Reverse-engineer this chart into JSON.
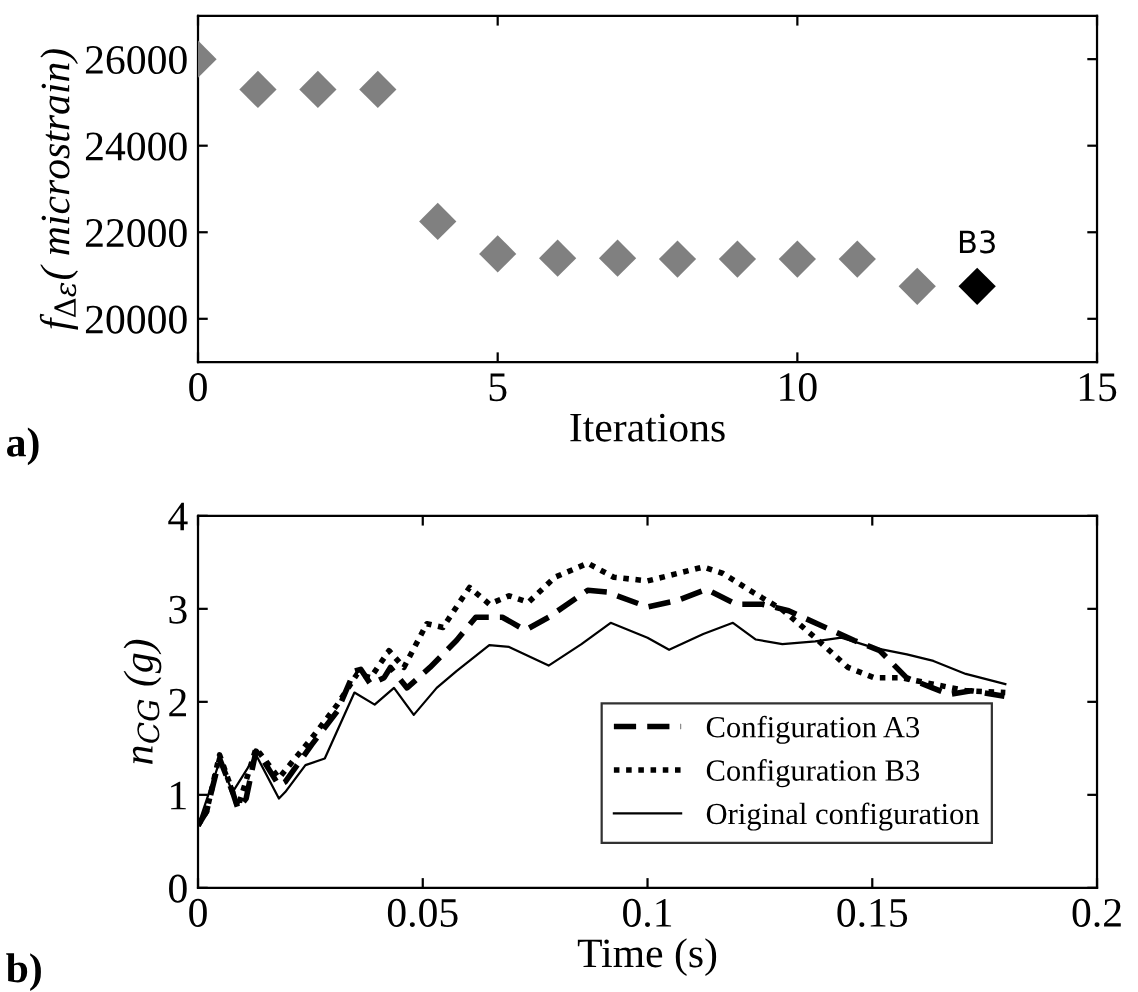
{
  "chart_data": [
    {
      "type": "scatter",
      "xlabel": "Iterations",
      "ylabel": "f$_{Δε}$( microstrain)",
      "xlim": [
        0,
        15
      ],
      "xticks": [
        0,
        5,
        10,
        15
      ],
      "ylim": [
        19000,
        27000
      ],
      "yticks": [
        20000,
        22000,
        24000,
        26000
      ],
      "marker": "diamond",
      "grid": false,
      "legend": false,
      "series": [
        {
          "color": "#808080",
          "x": [
            0,
            1,
            2,
            3,
            4,
            5,
            6,
            7,
            8,
            9,
            10,
            11,
            12
          ],
          "values": [
            26000,
            25300,
            25300,
            25300,
            22250,
            21500,
            21400,
            21400,
            21380,
            21380,
            21380,
            21380,
            20750
          ]
        },
        {
          "color": "#000000",
          "x": [
            13
          ],
          "values": [
            20750
          ]
        }
      ],
      "annotations": [
        {
          "text": "B3",
          "x": 13,
          "y": 20750
        },
        "a)"
      ]
    },
    {
      "type": "line",
      "xlabel": "Time (s)",
      "ylabel": "n$_{CG}$ (g)",
      "xlim": [
        0,
        0.2
      ],
      "xticks": [
        0,
        0.05,
        0.1,
        0.15,
        0.2
      ],
      "ylim": [
        0,
        4
      ],
      "yticks": [
        0,
        1,
        2,
        3,
        4
      ],
      "grid": false,
      "legend": "bottom right",
      "marker": "none",
      "series": [
        {
          "name": "Configuration A3",
          "color": "#000000",
          "line_style": "dashed",
          "x": [
            0,
            0.0019,
            0.0048,
            0.0077,
            0.0089,
            0.0107,
            0.0129,
            0.0143,
            0.018,
            0.0194,
            0.0253,
            0.031,
            0.0348,
            0.0362,
            0.0384,
            0.0414,
            0.0428,
            0.0465,
            0.0516,
            0.0575,
            0.0618,
            0.0677,
            0.0728,
            0.078,
            0.0867,
            0.091,
            0.1,
            0.1066,
            0.1131,
            0.1197,
            0.1255,
            0.1314,
            0.1386,
            0.146,
            0.1517,
            0.1576,
            0.1634,
            0.1671,
            0.172,
            0.1794
          ],
          "values": [
            0.67,
            0.82,
            1.39,
            1.03,
            0.85,
            0.96,
            1.47,
            1.39,
            1.1,
            1.14,
            1.54,
            1.9,
            2.33,
            2.35,
            2.19,
            2.26,
            2.37,
            2.15,
            2.37,
            2.66,
            2.91,
            2.91,
            2.77,
            2.91,
            3.2,
            3.18,
            3.02,
            3.09,
            3.21,
            3.05,
            3.05,
            2.98,
            2.82,
            2.66,
            2.55,
            2.26,
            2.15,
            2.08,
            2.12,
            2.06
          ]
        },
        {
          "name": "Configuration B3",
          "color": "#000000",
          "line_style": "dotted",
          "x": [
            0,
            0.0019,
            0.0048,
            0.0077,
            0.0089,
            0.0129,
            0.018,
            0.0253,
            0.031,
            0.0354,
            0.0384,
            0.0425,
            0.0458,
            0.0509,
            0.0545,
            0.059,
            0.0604,
            0.0648,
            0.0692,
            0.0735,
            0.0794,
            0.0867,
            0.0925,
            0.1,
            0.1066,
            0.1124,
            0.1168,
            0.1227,
            0.13,
            0.1373,
            0.1446,
            0.1504,
            0.1563,
            0.1636,
            0.1708,
            0.1796
          ],
          "values": [
            0.67,
            0.82,
            1.43,
            1.03,
            0.87,
            1.5,
            1.18,
            1.61,
            1.97,
            2.3,
            2.26,
            2.55,
            2.37,
            2.84,
            2.8,
            3.13,
            3.23,
            3.05,
            3.14,
            3.07,
            3.34,
            3.49,
            3.34,
            3.3,
            3.38,
            3.45,
            3.38,
            3.2,
            2.99,
            2.69,
            2.37,
            2.26,
            2.26,
            2.19,
            2.12,
            2.1
          ]
        },
        {
          "name": "Original configuration",
          "color": "#000000",
          "line_style": "solid",
          "x": [
            0,
            0.0048,
            0.0077,
            0.0129,
            0.018,
            0.0194,
            0.0239,
            0.0282,
            0.0348,
            0.0393,
            0.0436,
            0.048,
            0.0531,
            0.0575,
            0.0648,
            0.0692,
            0.078,
            0.0853,
            0.0918,
            0.1,
            0.1048,
            0.1124,
            0.119,
            0.1241,
            0.13,
            0.1373,
            0.1431,
            0.1504,
            0.1577,
            0.1636,
            0.1708,
            0.1796
          ],
          "values": [
            0.67,
            1.36,
            1.03,
            1.43,
            0.96,
            1.03,
            1.32,
            1.39,
            2.1,
            1.97,
            2.15,
            1.86,
            2.15,
            2.33,
            2.61,
            2.59,
            2.39,
            2.62,
            2.85,
            2.69,
            2.56,
            2.73,
            2.85,
            2.67,
            2.62,
            2.65,
            2.69,
            2.58,
            2.51,
            2.44,
            2.3,
            2.19
          ]
        }
      ],
      "annotations": [
        "b)"
      ]
    }
  ]
}
